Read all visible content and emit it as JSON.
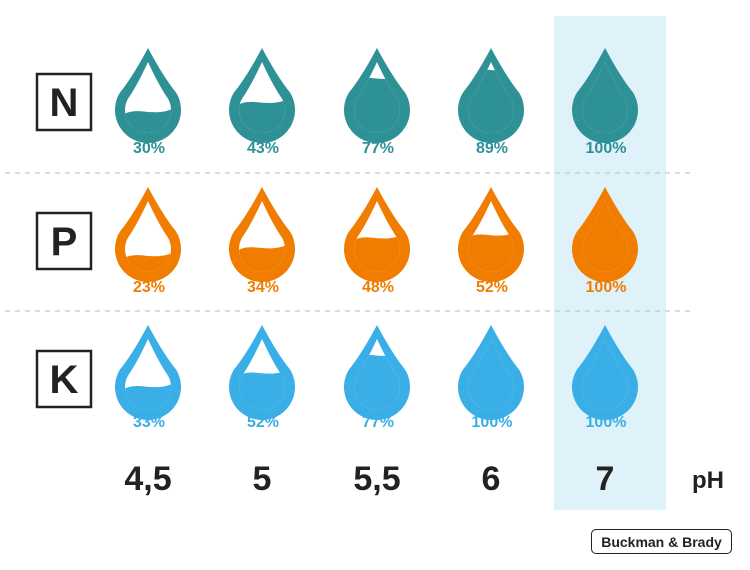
{
  "chart_data": {
    "type": "table",
    "x_label": "pH",
    "categories": [
      "4,5",
      "5",
      "5,5",
      "6",
      "7"
    ],
    "highlight_category": "7",
    "series": [
      {
        "name": "N",
        "values": [
          30,
          43,
          77,
          89,
          100
        ],
        "labels": [
          "30%",
          "43%",
          "77%",
          "89%",
          "100%"
        ],
        "color": "#2e9196"
      },
      {
        "name": "P",
        "values": [
          23,
          34,
          48,
          52,
          100
        ],
        "labels": [
          "23%",
          "34%",
          "48%",
          "52%",
          "100%"
        ],
        "color": "#f07d00"
      },
      {
        "name": "K",
        "values": [
          33,
          52,
          77,
          100,
          100
        ],
        "labels": [
          "33%",
          "52%",
          "77%",
          "100%",
          "100%"
        ],
        "color": "#3aaee6"
      }
    ]
  },
  "colors": {
    "highlight": "#dff2f9",
    "divider": "#bbbbbb",
    "text": "#222222"
  },
  "credit": "Buckman & Brady"
}
